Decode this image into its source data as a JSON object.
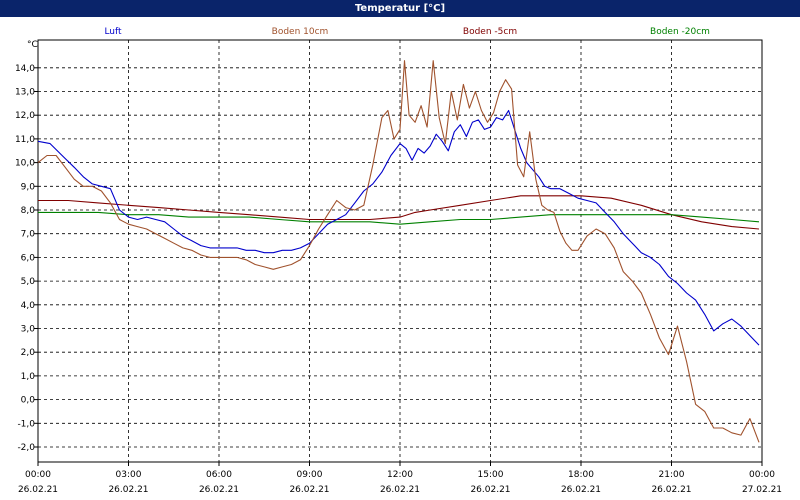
{
  "window": {
    "title": "Temperatur [°C]"
  },
  "chart_data": {
    "type": "line",
    "title": "Temperatur [°C]",
    "ylabel": "°C",
    "ylim": [
      -2.5,
      15.0
    ],
    "yticks": [
      "14,0",
      "13,0",
      "12,0",
      "11,0",
      "10,0",
      "9,0",
      "8,0",
      "7,0",
      "6,0",
      "5,0",
      "4,0",
      "3,0",
      "2,0",
      "1,0",
      "0,0",
      "-1,0",
      "-2,0"
    ],
    "xlim": [
      0,
      24
    ],
    "xticks": [
      {
        "time": "00:00",
        "date": "26.02.21"
      },
      {
        "time": "03:00",
        "date": "26.02.21"
      },
      {
        "time": "06:00",
        "date": "26.02.21"
      },
      {
        "time": "09:00",
        "date": "26.02.21"
      },
      {
        "time": "12:00",
        "date": "26.02.21"
      },
      {
        "time": "15:00",
        "date": "26.02.21"
      },
      {
        "time": "18:00",
        "date": "26.02.21"
      },
      {
        "time": "21:00",
        "date": "26.02.21"
      },
      {
        "time": "00:00",
        "date": "27.02.21"
      }
    ],
    "grid": true,
    "legend_position": "top",
    "series": [
      {
        "name": "Luft",
        "color": "#0000cc",
        "x": [
          0,
          0.4,
          0.8,
          1.2,
          1.5,
          1.8,
          2.1,
          2.4,
          2.7,
          3.0,
          3.3,
          3.6,
          3.9,
          4.2,
          4.5,
          4.8,
          5.1,
          5.4,
          5.7,
          6.0,
          6.3,
          6.6,
          6.9,
          7.2,
          7.5,
          7.8,
          8.1,
          8.4,
          8.7,
          9.0,
          9.3,
          9.6,
          9.9,
          10.2,
          10.5,
          10.8,
          11.1,
          11.4,
          11.7,
          12.0,
          12.2,
          12.4,
          12.6,
          12.8,
          13.0,
          13.2,
          13.4,
          13.6,
          13.8,
          14.0,
          14.2,
          14.4,
          14.6,
          14.8,
          15.0,
          15.2,
          15.4,
          15.6,
          15.8,
          16.0,
          16.2,
          16.4,
          16.6,
          16.8,
          17.0,
          17.3,
          17.6,
          17.9,
          18.2,
          18.5,
          18.8,
          19.1,
          19.4,
          19.7,
          20.0,
          20.3,
          20.6,
          20.9,
          21.2,
          21.5,
          21.8,
          22.1,
          22.4,
          22.7,
          23.0,
          23.3,
          23.6,
          23.9
        ],
        "y": [
          10.9,
          10.8,
          10.3,
          9.8,
          9.4,
          9.1,
          9.0,
          8.9,
          8.0,
          7.7,
          7.6,
          7.7,
          7.6,
          7.5,
          7.2,
          6.9,
          6.7,
          6.5,
          6.4,
          6.4,
          6.4,
          6.4,
          6.3,
          6.3,
          6.2,
          6.2,
          6.3,
          6.3,
          6.4,
          6.6,
          7.0,
          7.4,
          7.6,
          7.8,
          8.3,
          8.8,
          9.1,
          9.6,
          10.3,
          10.8,
          10.6,
          10.1,
          10.6,
          10.4,
          10.7,
          11.2,
          10.9,
          10.5,
          11.3,
          11.6,
          11.1,
          11.7,
          11.8,
          11.4,
          11.5,
          11.9,
          11.8,
          12.2,
          11.4,
          10.6,
          10.0,
          9.7,
          9.4,
          9.0,
          8.9,
          8.9,
          8.7,
          8.5,
          8.4,
          8.3,
          7.9,
          7.5,
          7.0,
          6.6,
          6.2,
          6.0,
          5.7,
          5.2,
          4.9,
          4.5,
          4.2,
          3.6,
          2.9,
          3.2,
          3.4,
          3.1,
          2.7,
          2.3
        ]
      },
      {
        "name": "Boden 10cm",
        "color": "#a0522d",
        "x": [
          0,
          0.3,
          0.6,
          0.9,
          1.2,
          1.5,
          1.8,
          2.1,
          2.4,
          2.7,
          3.0,
          3.3,
          3.6,
          3.9,
          4.2,
          4.5,
          4.8,
          5.1,
          5.4,
          5.7,
          6.0,
          6.3,
          6.6,
          6.9,
          7.2,
          7.5,
          7.8,
          8.1,
          8.4,
          8.7,
          9.0,
          9.3,
          9.6,
          9.9,
          10.2,
          10.5,
          10.8,
          11.1,
          11.4,
          11.6,
          11.8,
          12.0,
          12.15,
          12.3,
          12.5,
          12.7,
          12.9,
          13.1,
          13.3,
          13.5,
          13.7,
          13.9,
          14.1,
          14.3,
          14.5,
          14.7,
          14.9,
          15.1,
          15.3,
          15.5,
          15.7,
          15.9,
          16.1,
          16.3,
          16.5,
          16.7,
          16.9,
          17.1,
          17.3,
          17.5,
          17.7,
          17.9,
          18.2,
          18.5,
          18.8,
          19.1,
          19.4,
          19.7,
          20.0,
          20.3,
          20.6,
          20.9,
          21.2,
          21.5,
          21.8,
          22.1,
          22.4,
          22.7,
          23.0,
          23.3,
          23.6,
          23.9
        ],
        "y": [
          10.0,
          10.3,
          10.3,
          9.8,
          9.3,
          9.0,
          9.0,
          8.8,
          8.3,
          7.6,
          7.4,
          7.3,
          7.2,
          7.0,
          6.8,
          6.6,
          6.4,
          6.3,
          6.1,
          6.0,
          6.0,
          6.0,
          6.0,
          5.9,
          5.7,
          5.6,
          5.5,
          5.6,
          5.7,
          5.9,
          6.5,
          7.2,
          7.8,
          8.4,
          8.1,
          8.0,
          8.2,
          9.9,
          11.9,
          12.2,
          11.0,
          11.4,
          14.3,
          12.0,
          11.7,
          12.4,
          11.5,
          14.3,
          11.9,
          10.8,
          13.0,
          11.8,
          13.3,
          12.3,
          13.0,
          12.2,
          11.7,
          12.1,
          13.0,
          13.5,
          13.1,
          9.9,
          9.4,
          11.3,
          9.3,
          8.2,
          8.0,
          7.9,
          7.1,
          6.6,
          6.3,
          6.3,
          6.9,
          7.2,
          7.0,
          6.4,
          5.4,
          5.0,
          4.5,
          3.6,
          2.6,
          1.9,
          3.1,
          1.6,
          -0.2,
          -0.5,
          -1.2,
          -1.2,
          -1.4,
          -1.5,
          -0.8,
          -1.8
        ]
      },
      {
        "name": "Boden -5cm",
        "color": "#800000",
        "x": [
          0,
          1.0,
          2.0,
          3.0,
          4.0,
          5.0,
          6.0,
          7.0,
          8.0,
          9.0,
          10.0,
          11.0,
          12.0,
          12.5,
          13.0,
          14.0,
          15.0,
          16.0,
          17.0,
          18.0,
          19.0,
          20.0,
          21.0,
          22.0,
          23.0,
          23.9
        ],
        "y": [
          8.4,
          8.4,
          8.3,
          8.2,
          8.1,
          8.0,
          7.9,
          7.8,
          7.7,
          7.6,
          7.6,
          7.6,
          7.7,
          7.9,
          8.0,
          8.2,
          8.4,
          8.6,
          8.6,
          8.6,
          8.5,
          8.2,
          7.8,
          7.5,
          7.3,
          7.2
        ]
      },
      {
        "name": "Boden -20cm",
        "color": "#008000",
        "x": [
          0,
          1.0,
          2.0,
          3.0,
          4.0,
          5.0,
          6.0,
          7.0,
          8.0,
          9.0,
          10.0,
          11.0,
          12.0,
          13.0,
          14.0,
          15.0,
          16.0,
          17.0,
          18.0,
          19.0,
          20.0,
          21.0,
          22.0,
          23.0,
          23.9
        ],
        "y": [
          7.9,
          7.9,
          7.9,
          7.8,
          7.8,
          7.7,
          7.7,
          7.7,
          7.6,
          7.5,
          7.5,
          7.5,
          7.4,
          7.5,
          7.6,
          7.6,
          7.7,
          7.8,
          7.8,
          7.8,
          7.8,
          7.8,
          7.7,
          7.6,
          7.5
        ]
      }
    ]
  }
}
